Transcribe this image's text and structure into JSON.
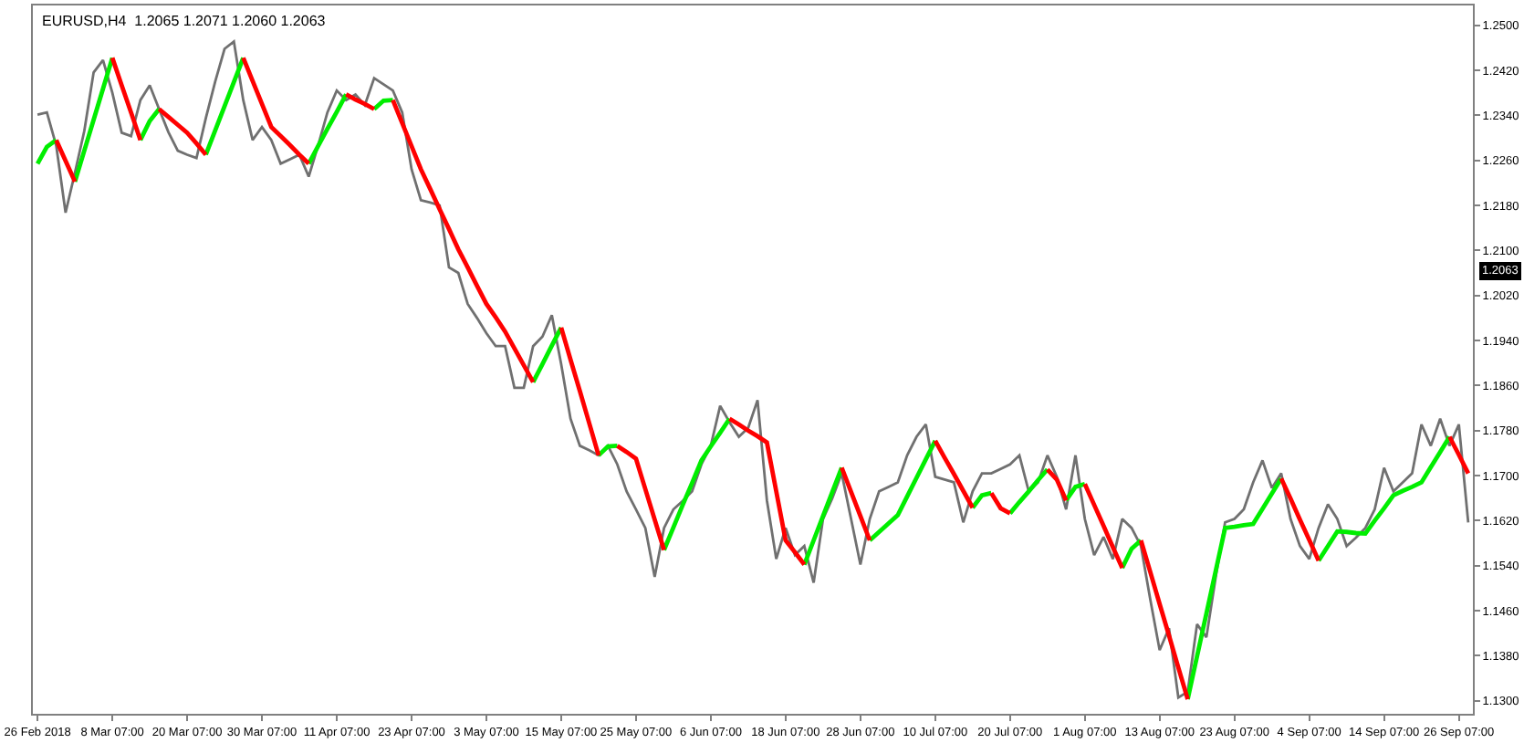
{
  "chart_data": {
    "type": "line",
    "title": "EURUSD,H4  1.2065 1.2071 1.2060 1.2063",
    "annotations": [
      "1.2063"
    ],
    "categories": [
      "26 Feb 2018",
      null,
      null,
      null,
      null,
      null,
      null,
      null,
      "8 Mar 07:00",
      null,
      null,
      null,
      null,
      null,
      null,
      null,
      "20 Mar 07:00",
      null,
      null,
      null,
      null,
      null,
      null,
      null,
      "30 Mar 07:00",
      null,
      null,
      null,
      null,
      null,
      null,
      null,
      "11 Apr 07:00",
      null,
      null,
      null,
      null,
      null,
      null,
      null,
      "23 Apr 07:00",
      null,
      null,
      null,
      null,
      null,
      null,
      null,
      "3 May 07:00",
      null,
      null,
      null,
      null,
      null,
      null,
      null,
      "15 May 07:00",
      null,
      null,
      null,
      null,
      null,
      null,
      null,
      "25 May 07:00",
      null,
      null,
      null,
      null,
      null,
      null,
      null,
      "6 Jun 07:00",
      null,
      null,
      null,
      null,
      null,
      null,
      null,
      "18 Jun 07:00",
      null,
      null,
      null,
      null,
      null,
      null,
      null,
      "28 Jun 07:00",
      null,
      null,
      null,
      null,
      null,
      null,
      null,
      "10 Jul 07:00",
      null,
      null,
      null,
      null,
      null,
      null,
      null,
      "20 Jul 07:00",
      null,
      null,
      null,
      null,
      null,
      null,
      null,
      "1 Aug 07:00",
      null,
      null,
      null,
      null,
      null,
      null,
      null,
      "13 Aug 07:00",
      null,
      null,
      null,
      null,
      null,
      null,
      null,
      "23 Aug 07:00",
      null,
      null,
      null,
      null,
      null,
      null,
      null,
      "4 Sep 07:00",
      null,
      null,
      null,
      null,
      null,
      null,
      null,
      "14 Sep 07:00",
      null,
      null,
      null,
      null,
      null,
      null,
      null,
      "26 Sep 07:00",
      null
    ],
    "ylim": [
      1.1277,
      1.2535
    ],
    "yticks": [
      {
        "value": 1.25,
        "label": "1.2500"
      },
      {
        "value": 1.242,
        "label": "1.2420"
      },
      {
        "value": 1.234,
        "label": "1.2340"
      },
      {
        "value": 1.226,
        "label": "1.2260"
      },
      {
        "value": 1.218,
        "label": "1.2180"
      },
      {
        "value": 1.21,
        "label": "1.2100"
      },
      {
        "value": 1.202,
        "label": "1.2020"
      },
      {
        "value": 1.194,
        "label": "1.1940"
      },
      {
        "value": 1.186,
        "label": "1.1860"
      },
      {
        "value": 1.178,
        "label": "1.1780"
      },
      {
        "value": 1.17,
        "label": "1.1700"
      },
      {
        "value": 1.162,
        "label": "1.1620"
      },
      {
        "value": 1.154,
        "label": "1.1540"
      },
      {
        "value": 1.146,
        "label": "1.1460"
      },
      {
        "value": 1.138,
        "label": "1.1380"
      },
      {
        "value": 1.13,
        "label": "1.1300"
      }
    ],
    "series": [
      {
        "color": "#707070",
        "values": [
          1.2341,
          1.2345,
          1.2286,
          1.2167,
          1.2238,
          1.2312,
          1.2416,
          1.2438,
          1.238,
          1.2309,
          1.2303,
          1.2367,
          1.2393,
          1.2351,
          1.231,
          1.2277,
          1.227,
          1.2264,
          1.2335,
          1.24,
          1.2458,
          1.2471,
          1.2367,
          1.2296,
          1.2319,
          1.2296,
          1.2254,
          1.2262,
          1.227,
          1.2231,
          1.2286,
          1.2345,
          1.2384,
          1.2367,
          1.2377,
          1.2358,
          1.2406,
          1.2395,
          1.2384,
          1.2345,
          1.2244,
          1.2189,
          1.2185,
          1.218,
          1.207,
          1.206,
          1.2005,
          1.198,
          1.1953,
          1.193,
          1.193,
          1.1856,
          1.1856,
          1.193,
          1.1947,
          1.1985,
          1.1898,
          1.1801,
          1.1753,
          1.1745,
          1.1736,
          1.1753,
          1.172,
          1.1672,
          1.164,
          1.1607,
          1.152,
          1.1607,
          1.164,
          1.1655,
          1.1672,
          1.172,
          1.1753,
          1.1824,
          1.1795,
          1.1769,
          1.1785,
          1.1834,
          1.1656,
          1.1552,
          1.1607,
          1.1559,
          1.1575,
          1.151,
          1.1623,
          1.166,
          1.1704,
          1.1623,
          1.1542,
          1.1623,
          1.1672,
          1.168,
          1.1688,
          1.1736,
          1.1769,
          1.1791,
          1.1698,
          1.1693,
          1.1688,
          1.1617,
          1.1672,
          1.1704,
          1.1704,
          1.1712,
          1.172,
          1.1736,
          1.1672,
          1.1688,
          1.1736,
          1.1698,
          1.164,
          1.1736,
          1.1623,
          1.1559,
          1.1591,
          1.1552,
          1.1623,
          1.1607,
          1.1575,
          1.148,
          1.139,
          1.1429,
          1.1306,
          1.1316,
          1.1436,
          1.1413,
          1.152,
          1.1617,
          1.1623,
          1.164,
          1.1688,
          1.1727,
          1.1678,
          1.1704,
          1.1623,
          1.1575,
          1.1552,
          1.1607,
          1.1649,
          1.1623,
          1.1575,
          1.159,
          1.1607,
          1.164,
          1.1714,
          1.1672,
          1.1688,
          1.1704,
          1.1791,
          1.1753,
          1.1801,
          1.1753,
          1.1791,
          1.1617
        ]
      },
      {
        "color": "#00ee00",
        "values": [
          1.2254,
          1.2284,
          1.2296,
          null,
          1.2222,
          1.2277,
          1.2332,
          1.2387,
          1.2442,
          null,
          null,
          1.2296,
          1.233,
          1.2351,
          null,
          null,
          null,
          null,
          1.227,
          1.2313,
          1.2356,
          1.2399,
          1.2442,
          null,
          null,
          null,
          null,
          null,
          null,
          1.2254,
          1.2285,
          1.2316,
          1.2346,
          1.2377,
          null,
          null,
          1.2351,
          1.2366,
          1.2367,
          null,
          null,
          null,
          null,
          null,
          null,
          null,
          null,
          null,
          null,
          null,
          null,
          null,
          null,
          1.1866,
          1.1898,
          1.1931,
          1.1963,
          null,
          null,
          null,
          1.1736,
          1.1752,
          1.1753,
          null,
          null,
          null,
          null,
          1.1568,
          1.1608,
          1.1648,
          1.1687,
          1.1727,
          1.1752,
          1.1776,
          1.1801,
          null,
          null,
          null,
          null,
          null,
          null,
          null,
          1.1542,
          1.1585,
          1.1628,
          1.1671,
          1.1714,
          null,
          null,
          1.1585,
          1.16,
          1.1615,
          1.163,
          1.1663,
          1.1696,
          1.1729,
          1.1762,
          null,
          null,
          null,
          1.1643,
          1.1665,
          1.1669,
          null,
          1.1633,
          1.1653,
          1.1672,
          1.1692,
          1.1711,
          null,
          1.1656,
          1.168,
          1.1685,
          null,
          null,
          null,
          1.1536,
          1.157,
          1.1585,
          null,
          null,
          null,
          null,
          1.1303,
          1.1379,
          1.1455,
          1.1531,
          1.1607,
          1.1609,
          1.1612,
          1.1614,
          1.1641,
          1.1668,
          1.1695,
          null,
          null,
          null,
          1.1549,
          1.1575,
          1.1601,
          1.16,
          1.1598,
          1.1597,
          1.162,
          1.1642,
          1.1665,
          1.1673,
          1.168,
          1.1688,
          1.1715,
          1.1742,
          1.1769,
          null,
          null
        ]
      },
      {
        "color": "#ff0000",
        "values": [
          null,
          null,
          1.2296,
          1.2259,
          1.2222,
          null,
          null,
          null,
          1.2442,
          1.2393,
          1.2345,
          1.2296,
          null,
          1.2351,
          1.2337,
          1.2323,
          1.2309,
          1.229,
          1.227,
          null,
          null,
          null,
          1.2442,
          1.2401,
          1.236,
          1.2319,
          1.2303,
          1.2287,
          1.227,
          1.2254,
          null,
          null,
          null,
          1.2377,
          1.2368,
          1.236,
          1.2351,
          null,
          1.2367,
          1.2326,
          1.2285,
          1.2244,
          1.2209,
          1.2173,
          1.2138,
          1.2102,
          1.207,
          1.2037,
          1.2005,
          1.1981,
          1.1956,
          1.1926,
          1.1896,
          1.1866,
          null,
          null,
          1.1963,
          1.1906,
          1.185,
          1.1793,
          1.1736,
          null,
          1.1753,
          1.1742,
          1.173,
          1.1676,
          1.1622,
          1.1568,
          null,
          null,
          null,
          null,
          null,
          null,
          1.1801,
          1.1791,
          1.178,
          1.177,
          1.1759,
          1.1672,
          1.1585,
          1.1564,
          1.1542,
          null,
          null,
          null,
          1.1714,
          1.1671,
          1.1628,
          1.1585,
          null,
          null,
          null,
          null,
          null,
          null,
          1.1762,
          1.1732,
          1.1703,
          1.1673,
          1.1643,
          null,
          1.1669,
          1.1642,
          1.1633,
          null,
          null,
          null,
          1.1711,
          1.1693,
          1.1656,
          null,
          1.1685,
          1.1648,
          1.1611,
          1.1573,
          1.1536,
          null,
          1.1585,
          1.1529,
          1.1472,
          1.1416,
          1.1359,
          1.1303,
          null,
          null,
          null,
          null,
          null,
          null,
          null,
          null,
          null,
          1.1695,
          1.1659,
          1.1622,
          1.1586,
          1.1549,
          null,
          null,
          null,
          null,
          null,
          null,
          null,
          null,
          null,
          null,
          null,
          null,
          null,
          1.1769,
          1.1737,
          1.1704
        ]
      }
    ]
  }
}
